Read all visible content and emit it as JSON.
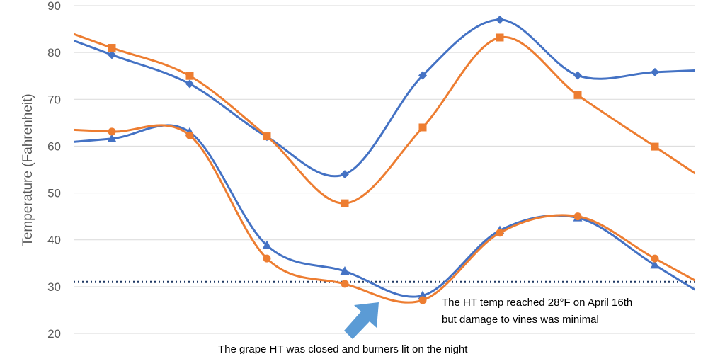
{
  "chart_data": {
    "type": "line",
    "title": "",
    "xlabel": "",
    "ylabel": "Temperature (Fahrenheit)",
    "ylim": [
      20,
      90
    ],
    "yticks": [
      20,
      30,
      40,
      50,
      60,
      70,
      80,
      90
    ],
    "grid": true,
    "smooth": true,
    "reference_line": {
      "value": 31,
      "style": "dotted",
      "color": "#1F3864"
    },
    "series": [
      {
        "color": "#4472C4",
        "marker": "diamond",
        "values": [
          79.5,
          73.3,
          62.0,
          54.0,
          75.1,
          87.0,
          75.1,
          75.8
        ]
      },
      {
        "color": "#ED7D31",
        "marker": "square",
        "values": [
          81.0,
          75.0,
          62.1,
          47.8,
          64.0,
          83.2,
          70.9,
          59.9
        ]
      },
      {
        "color": "#4472C4",
        "marker": "triangle",
        "values": [
          61.6,
          63.0,
          38.8,
          33.3,
          28.1,
          42.0,
          44.7,
          34.6
        ]
      },
      {
        "color": "#ED7D31",
        "marker": "circle",
        "values": [
          63.1,
          62.3,
          36.0,
          30.6,
          27.1,
          41.5,
          45.0,
          36.0
        ]
      }
    ],
    "annotations": {
      "right_line1": "The HT temp reached 28°F on April 16th",
      "right_line2": "but damage to vines was minimal",
      "bottom_line1": "The grape HT was closed and burners lit on the night"
    },
    "arrow_color": "#5B9BD5"
  }
}
